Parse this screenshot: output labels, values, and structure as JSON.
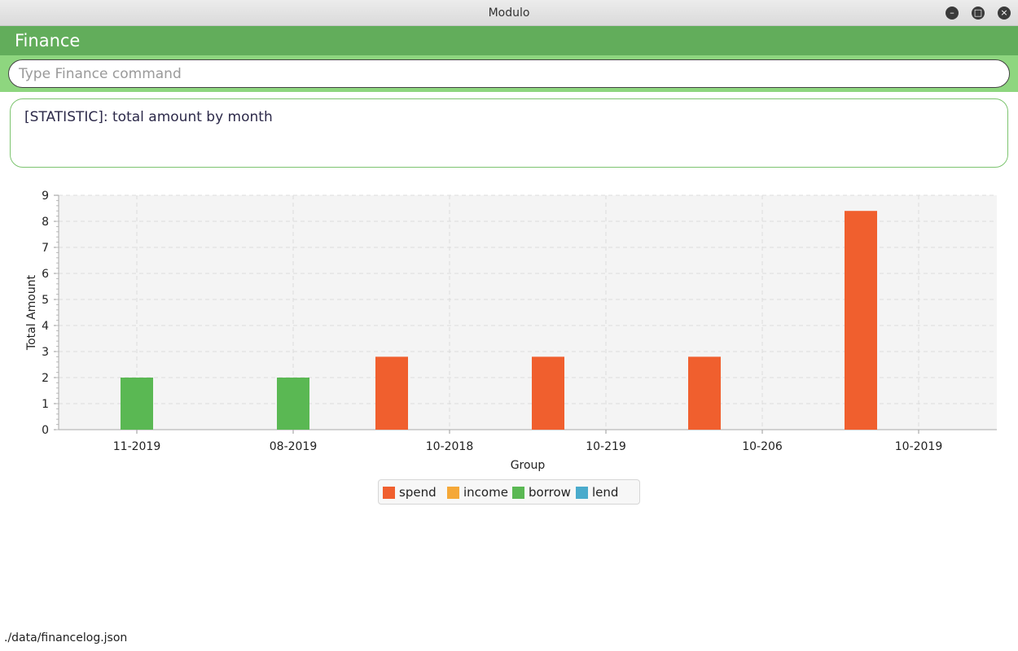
{
  "window": {
    "title": "Modulo",
    "minimize_icon": "minimize-icon",
    "maximize_icon": "maximize-icon",
    "close_icon": "close-icon"
  },
  "header": {
    "title": "Finance"
  },
  "command": {
    "placeholder": "Type Finance command",
    "value": ""
  },
  "result": {
    "text": "[STATISTIC]: total amount by month"
  },
  "colors": {
    "spend": "#f05f2e",
    "income": "#f5a838",
    "borrow": "#5ab853",
    "lend": "#4aabcc",
    "header": "#62ad5b",
    "command_bar": "#8ed67f"
  },
  "chart_data": {
    "type": "bar",
    "xlabel": "Group",
    "ylabel": "Total Amount",
    "ylim": [
      0,
      9
    ],
    "yticks": [
      0,
      1,
      2,
      3,
      4,
      5,
      6,
      7,
      8,
      9
    ],
    "grid": true,
    "legend_position": "bottom",
    "categories": [
      "11-2019",
      "08-2019",
      "10-2018",
      "10-219",
      "10-206",
      "10-2019"
    ],
    "series": [
      {
        "name": "spend",
        "values": [
          0,
          0,
          2.8,
          2.8,
          2.8,
          8.4
        ]
      },
      {
        "name": "income",
        "values": [
          0,
          0,
          0,
          0,
          0,
          0
        ]
      },
      {
        "name": "borrow",
        "values": [
          2,
          2,
          0,
          0,
          0,
          0
        ]
      },
      {
        "name": "lend",
        "values": [
          0,
          0,
          0,
          0,
          0,
          0
        ]
      }
    ]
  },
  "status_bar": {
    "path": "./data/financelog.json"
  }
}
